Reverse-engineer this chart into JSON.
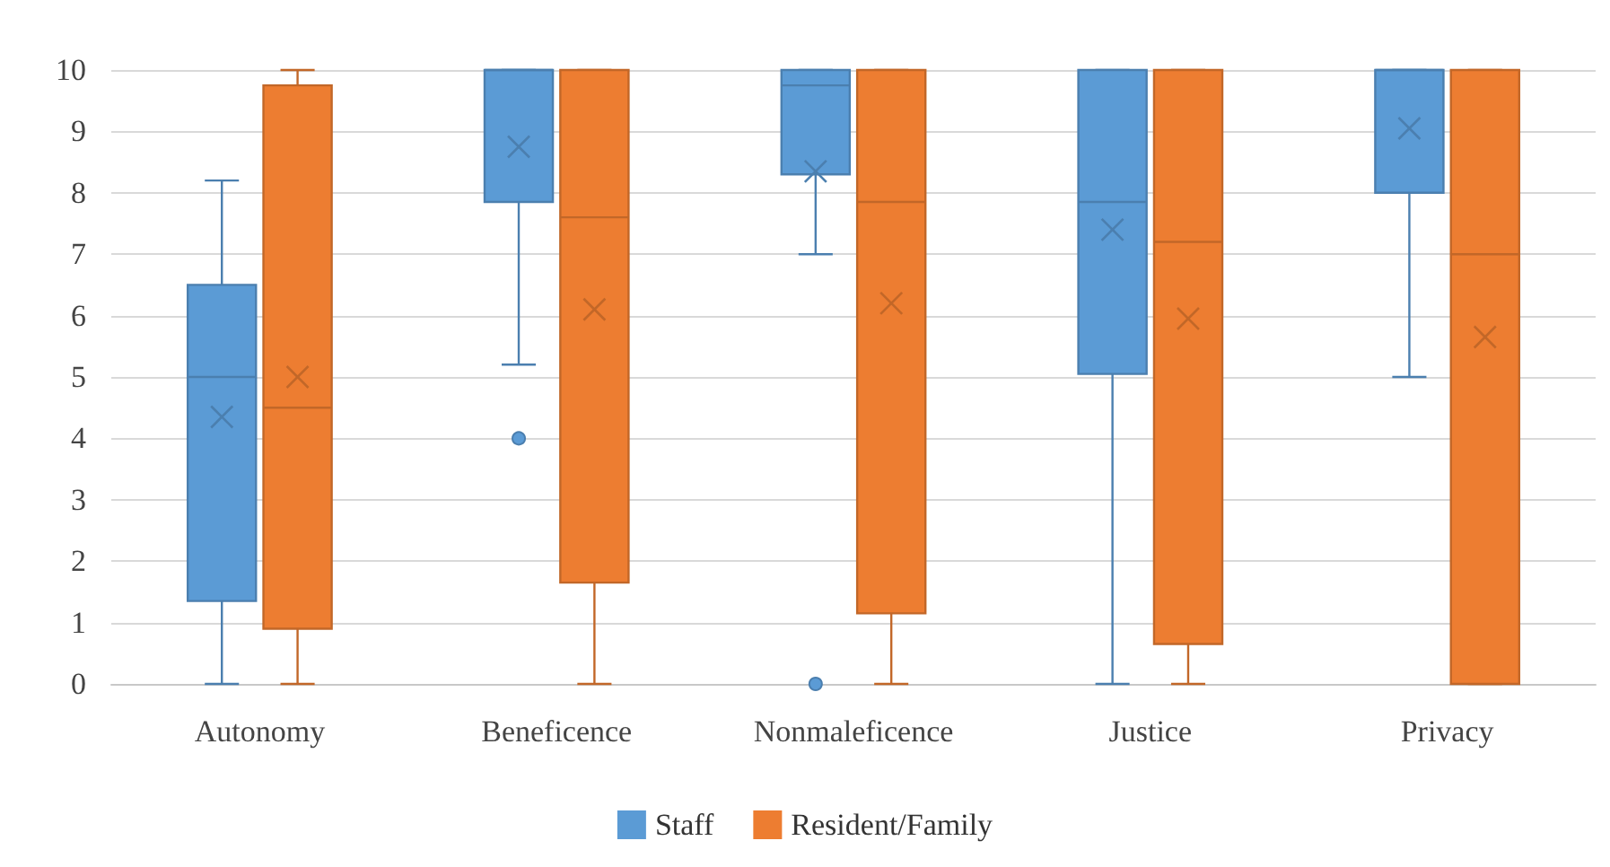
{
  "chart_data": {
    "type": "box",
    "categories": [
      "Autonomy",
      "Beneficence",
      "Nonmaleficence",
      "Justice",
      "Privacy"
    ],
    "series": [
      {
        "name": "Staff",
        "color": "#5b9bd5",
        "boxes": [
          {
            "low": 0,
            "q1": 1.35,
            "median": 5.0,
            "q3": 6.5,
            "high": 8.2,
            "mean": 4.35
          },
          {
            "low": 5.2,
            "q1": 7.85,
            "median": 10,
            "q3": 10,
            "high": 10,
            "mean": 8.75,
            "outliers": [
              4
            ]
          },
          {
            "low": 7.0,
            "q1": 8.3,
            "median": 9.75,
            "q3": 10,
            "high": 10,
            "mean": 8.35,
            "outliers": [
              0
            ]
          },
          {
            "low": 0,
            "q1": 5.05,
            "median": 7.85,
            "q3": 10,
            "high": 10,
            "mean": 7.4
          },
          {
            "low": 5.0,
            "q1": 8.0,
            "median": 10,
            "q3": 10,
            "high": 10,
            "mean": 9.05
          }
        ]
      },
      {
        "name": "Resident/Family",
        "color": "#ed7d31",
        "boxes": [
          {
            "low": 0,
            "q1": 0.9,
            "median": 4.5,
            "q3": 9.75,
            "high": 10,
            "mean": 5.0
          },
          {
            "low": 0,
            "q1": 1.65,
            "median": 7.6,
            "q3": 10,
            "high": 10,
            "mean": 6.1
          },
          {
            "low": 0,
            "q1": 1.15,
            "median": 7.85,
            "q3": 10,
            "high": 10,
            "mean": 6.2
          },
          {
            "low": 0,
            "q1": 0.65,
            "median": 7.2,
            "q3": 10,
            "high": 10,
            "mean": 5.95
          },
          {
            "low": 0,
            "q1": 0,
            "median": 7.0,
            "q3": 10,
            "high": 10,
            "mean": 5.65
          }
        ]
      }
    ],
    "ylim": [
      0,
      10
    ],
    "yticks": [
      0,
      1,
      2,
      3,
      4,
      5,
      6,
      7,
      8,
      9,
      10
    ],
    "grid": "y",
    "legend": "bottom",
    "marker": "cross"
  }
}
